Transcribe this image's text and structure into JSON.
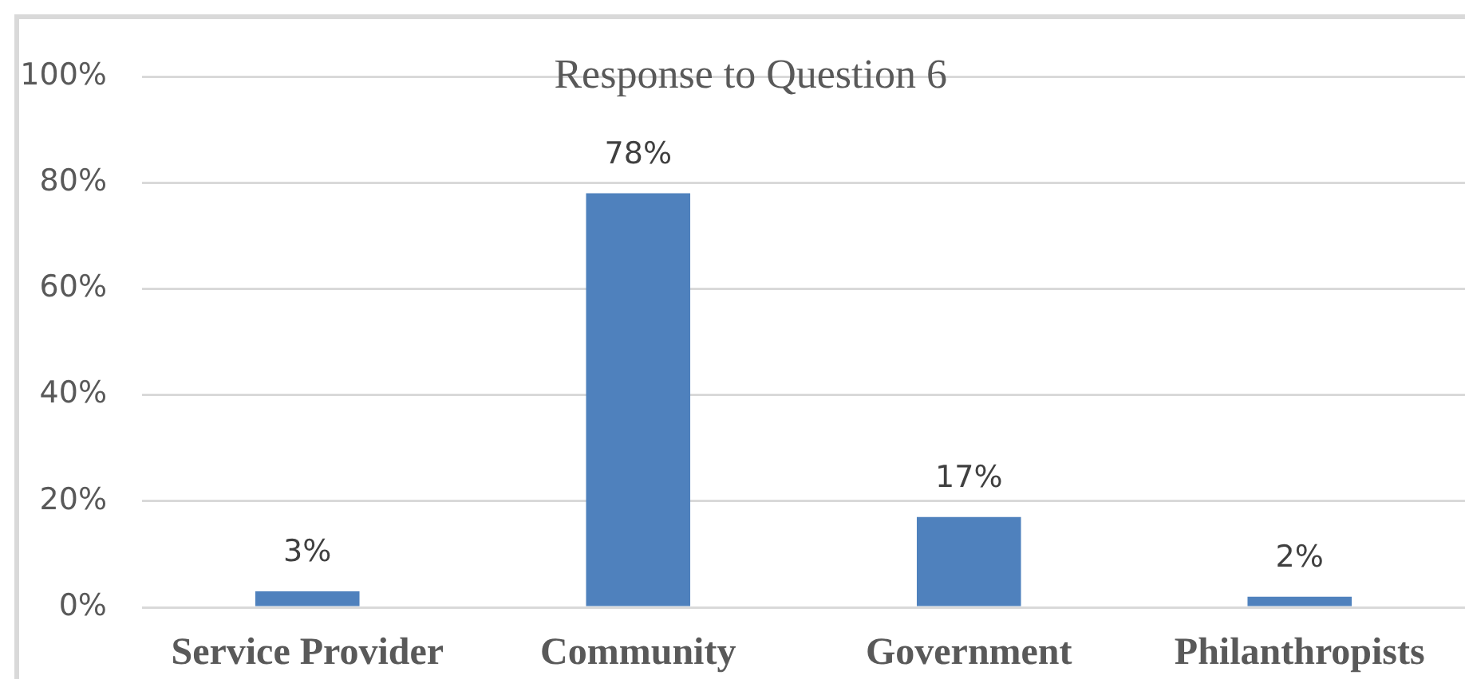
{
  "chart_data": {
    "type": "bar",
    "title": "Response to Question 6",
    "categories": [
      "Service Provider",
      "Community",
      "Government",
      "Philanthropists"
    ],
    "values": [
      3,
      78,
      17,
      2
    ],
    "color": "#4f81bd",
    "value_labels": [
      "3%",
      "78%",
      "17%",
      "2%"
    ],
    "ylim": [
      0,
      100
    ],
    "yticks": [
      {
        "value": 0,
        "label": "0%"
      },
      {
        "value": 20,
        "label": "20%"
      },
      {
        "value": 40,
        "label": "40%"
      },
      {
        "value": 60,
        "label": "60%"
      },
      {
        "value": 80,
        "label": "80%"
      },
      {
        "value": 100,
        "label": "100%"
      }
    ],
    "grid": "y",
    "legend": false
  }
}
